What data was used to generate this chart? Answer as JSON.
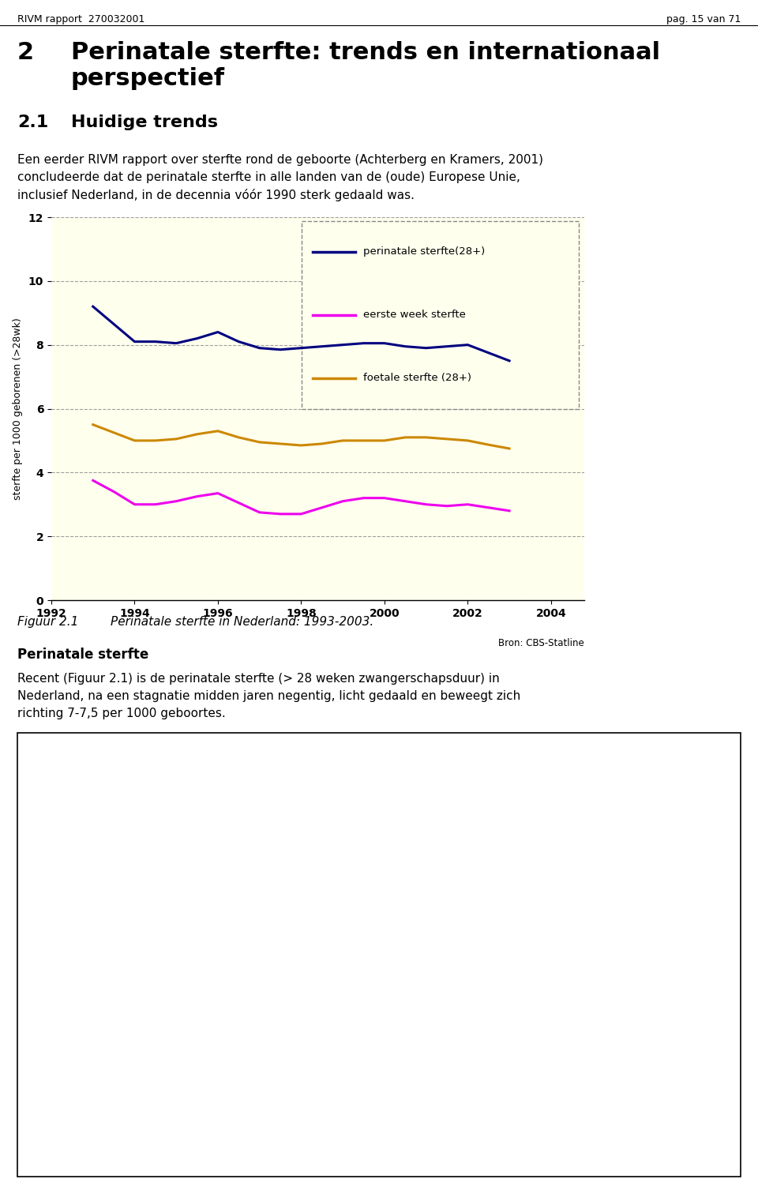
{
  "page_header_left": "RIVM rapport  270032001",
  "page_header_right": "pag. 15 van 71",
  "chart_bg": "#ffffee",
  "chart_ylabel": "sterfte per 1000 geborenen (>28wk)",
  "chart_xlabel_source": "Bron: CBS-Statline",
  "chart_ylim": [
    0,
    12
  ],
  "chart_yticks": [
    0,
    2,
    4,
    6,
    8,
    10,
    12
  ],
  "chart_xticks": [
    1992,
    1994,
    1996,
    1998,
    2000,
    2002,
    2004
  ],
  "years": [
    1993,
    1993.5,
    1994,
    1994.5,
    1995,
    1995.5,
    1996,
    1996.5,
    1997,
    1997.5,
    1998,
    1998.5,
    1999,
    1999.5,
    2000,
    2000.5,
    2001,
    2001.5,
    2002,
    2002.5,
    2003
  ],
  "perinatale": [
    9.2,
    8.65,
    8.1,
    8.1,
    8.05,
    8.2,
    8.4,
    8.1,
    7.9,
    7.85,
    7.9,
    7.95,
    8.0,
    8.05,
    8.05,
    7.95,
    7.9,
    7.95,
    8.0,
    7.75,
    7.5
  ],
  "eerste_week": [
    3.75,
    3.4,
    3.0,
    3.0,
    3.1,
    3.25,
    3.35,
    3.05,
    2.75,
    2.7,
    2.7,
    2.9,
    3.1,
    3.2,
    3.2,
    3.1,
    3.0,
    2.95,
    3.0,
    2.9,
    2.8
  ],
  "foetale": [
    5.5,
    5.25,
    5.0,
    5.0,
    5.05,
    5.2,
    5.3,
    5.1,
    4.95,
    4.9,
    4.85,
    4.9,
    5.0,
    5.0,
    5.0,
    5.1,
    5.1,
    5.05,
    5.0,
    4.87,
    4.75
  ],
  "color_perinatale": "#000080",
  "color_eerste_week": "#ee00ee",
  "color_foetale": "#cc8800",
  "legend_labels": [
    "perinatale sterfte(28+)",
    "eerste week sterfte",
    "foetale sterfte (28+)"
  ]
}
